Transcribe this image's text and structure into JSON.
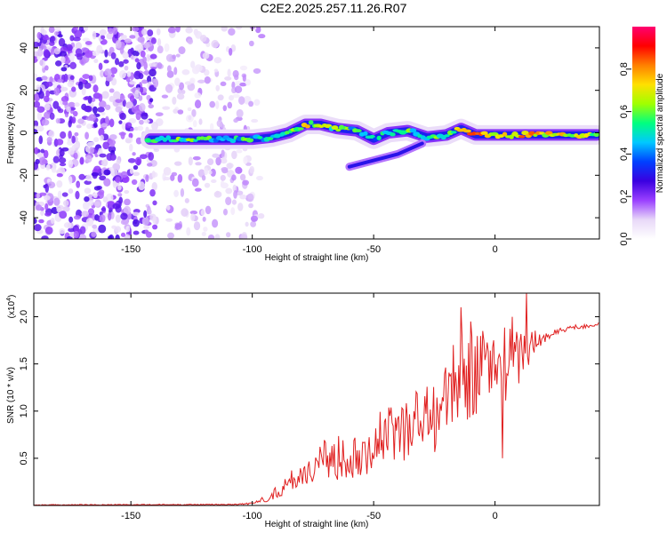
{
  "title": "C2E2.2025.257.11.26.R07",
  "colors": {
    "snr_line": "#e02020",
    "axis": "#000000",
    "background": "#ffffff"
  },
  "chart_data": [
    {
      "type": "heatmap",
      "name": "spectrogram",
      "xlabel": "Height of straight line (km)",
      "ylabel": "Frequency (Hz)",
      "xlim": [
        -190,
        43
      ],
      "ylim": [
        -50,
        50
      ],
      "xticks": [
        -150,
        -100,
        -50,
        0
      ],
      "xtick_labels": [
        "-150",
        "-100",
        "-50",
        "0"
      ],
      "yticks": [
        40,
        20,
        0,
        -20,
        -40
      ],
      "ytick_labels": [
        "40",
        "20",
        "0",
        "-20",
        "-40"
      ],
      "colorbar": {
        "label": "Normalized spectral amplitude",
        "range": [
          0,
          1
        ],
        "ticks": [
          0,
          0.2,
          0.4,
          0.6,
          0.8
        ],
        "tick_labels": [
          "0.0",
          "0.2",
          "0.4",
          "0.6",
          "0.8"
        ],
        "colormap": [
          "#ffffff",
          "#e8d8f8",
          "#9a40ff",
          "#3a00e0",
          "#0040ff",
          "#00c8ff",
          "#00ff80",
          "#a0ff00",
          "#ffe000",
          "#ff8000",
          "#ff0000",
          "#ff0070"
        ]
      },
      "ridge_trace": [
        {
          "x": -142,
          "freq": -3,
          "amp": 0.45
        },
        {
          "x": -130,
          "freq": -3,
          "amp": 0.55
        },
        {
          "x": -120,
          "freq": -3,
          "amp": 0.5
        },
        {
          "x": -110,
          "freq": -3,
          "amp": 0.5
        },
        {
          "x": -100,
          "freq": -3,
          "amp": 0.5
        },
        {
          "x": -92,
          "freq": -2,
          "amp": 0.55
        },
        {
          "x": -85,
          "freq": 0,
          "amp": 0.6
        },
        {
          "x": -78,
          "freq": 4,
          "amp": 0.65
        },
        {
          "x": -72,
          "freq": 4,
          "amp": 0.6
        },
        {
          "x": -65,
          "freq": 2,
          "amp": 0.6
        },
        {
          "x": -57,
          "freq": 1,
          "amp": 0.5
        },
        {
          "x": -50,
          "freq": -3,
          "amp": 0.45
        },
        {
          "x": -44,
          "freq": 0,
          "amp": 0.55
        },
        {
          "x": -36,
          "freq": 1,
          "amp": 0.55
        },
        {
          "x": -28,
          "freq": -2,
          "amp": 0.5
        },
        {
          "x": -20,
          "freq": -1,
          "amp": 0.55
        },
        {
          "x": -14,
          "freq": 2,
          "amp": 0.65
        },
        {
          "x": -8,
          "freq": -1,
          "amp": 0.9
        },
        {
          "x": 0,
          "freq": -1,
          "amp": 0.7
        },
        {
          "x": 10,
          "freq": -1,
          "amp": 0.75
        },
        {
          "x": 20,
          "freq": -1,
          "amp": 0.7
        },
        {
          "x": 30,
          "freq": -1,
          "amp": 0.65
        },
        {
          "x": 42,
          "freq": -1,
          "amp": 0.65
        }
      ],
      "branch_trace": [
        {
          "x": -60,
          "freq": -16
        },
        {
          "x": -50,
          "freq": -13
        },
        {
          "x": -40,
          "freq": -10
        },
        {
          "x": -30,
          "freq": -5
        }
      ]
    },
    {
      "type": "line",
      "name": "snr",
      "xlabel": "Height of straight line (km)",
      "ylabel": "SNR (10 * v/v)",
      "y_scale_label": "(x10",
      "y_scale_exp": "4",
      "y_scale_close": ")",
      "xlim": [
        -190,
        43
      ],
      "ylim": [
        0,
        22500
      ],
      "xticks": [
        -150,
        -100,
        -50,
        0
      ],
      "xtick_labels": [
        "-150",
        "-100",
        "-50",
        "0"
      ],
      "yticks": [
        5000,
        10000,
        15000,
        20000
      ],
      "ytick_labels": [
        "0.5",
        "1.0",
        "1.5",
        "2.0"
      ],
      "envelope": [
        {
          "x": -190,
          "base": 0,
          "spread": 100
        },
        {
          "x": -110,
          "base": 50,
          "spread": 100
        },
        {
          "x": -100,
          "base": 100,
          "spread": 200
        },
        {
          "x": -92,
          "base": 500,
          "spread": 1000
        },
        {
          "x": -82,
          "base": 1500,
          "spread": 3000
        },
        {
          "x": -70,
          "base": 2500,
          "spread": 4500
        },
        {
          "x": -55,
          "base": 3000,
          "spread": 5500
        },
        {
          "x": -45,
          "base": 4000,
          "spread": 6500
        },
        {
          "x": -35,
          "base": 5000,
          "spread": 7500
        },
        {
          "x": -25,
          "base": 5500,
          "spread": 8000
        },
        {
          "x": -15,
          "base": 8500,
          "spread": 9500
        },
        {
          "x": -5,
          "base": 10000,
          "spread": 9000
        },
        {
          "x": 5,
          "base": 11000,
          "spread": 8000
        },
        {
          "x": 15,
          "base": 15000,
          "spread": 4000
        },
        {
          "x": 22,
          "base": 17500,
          "spread": 1000
        },
        {
          "x": 30,
          "base": 18500,
          "spread": 600
        },
        {
          "x": 43,
          "base": 19000,
          "spread": 400
        }
      ],
      "spikes": [
        {
          "x": -14,
          "y": 21000
        },
        {
          "x": -10,
          "y": 19500
        },
        {
          "x": 13,
          "y": 22500
        },
        {
          "x": 7,
          "y": 20000
        },
        {
          "x": 3,
          "y": 5000
        }
      ]
    }
  ]
}
